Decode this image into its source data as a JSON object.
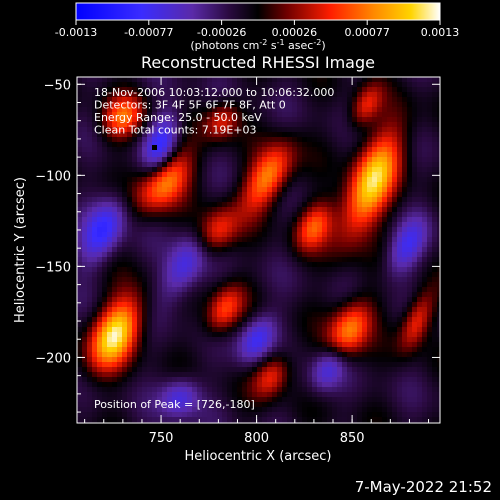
{
  "chart_data": {
    "type": "heatmap",
    "title": "Reconstructed RHESSI Image",
    "colorbar": {
      "ticks": [
        "-0.0013",
        "-0.00077",
        "-0.00026",
        "0.00026",
        "0.00077",
        "0.0013"
      ],
      "unit_parts": [
        "(photons cm",
        "-2",
        " s",
        "-1",
        " asec",
        "-2",
        ")"
      ],
      "range": [
        -0.0013,
        0.0013
      ]
    },
    "xlabel": "Heliocentric X (arcsec)",
    "ylabel": "Heliocentric Y (arcsec)",
    "xlim": [
      706,
      896
    ],
    "ylim": [
      -236,
      -46
    ],
    "xticks": [
      {
        "v": 750,
        "label": "750"
      },
      {
        "v": 800,
        "label": "800"
      },
      {
        "v": 850,
        "label": "850"
      }
    ],
    "yticks": [
      {
        "v": -50,
        "label": "−50"
      },
      {
        "v": -100,
        "label": "−100"
      },
      {
        "v": -150,
        "label": "−150"
      },
      {
        "v": -200,
        "label": "−200"
      }
    ],
    "annotations": [
      "18-Nov-2006 10:03:12.000 to 10:06:32.000",
      "Detectors: 3F 4F 5F 6F 7F 8F, Att 0",
      "Energy Range: 25.0 - 50.0 keV",
      "Clean    Total counts: 7.19E+03"
    ],
    "peak_label": "Position of Peak = [726,-180]",
    "blobs": [
      {
        "x": 726,
        "y": -187,
        "sx": 8,
        "sy": 15,
        "theta": 25,
        "a": 1.0
      },
      {
        "x": 751,
        "y": -103,
        "sx": 8,
        "sy": 13,
        "theta": 35,
        "a": 0.85
      },
      {
        "x": 779,
        "y": -131,
        "sx": 7,
        "sy": 10,
        "theta": 30,
        "a": 0.55
      },
      {
        "x": 806,
        "y": -101,
        "sx": 7,
        "sy": 14,
        "theta": 28,
        "a": 0.75
      },
      {
        "x": 860,
        "y": -105,
        "sx": 8,
        "sy": 22,
        "theta": 22,
        "a": 0.95
      },
      {
        "x": 830,
        "y": -128,
        "sx": 6,
        "sy": 10,
        "theta": 25,
        "a": 0.55
      },
      {
        "x": 848,
        "y": -186,
        "sx": 7,
        "sy": 13,
        "theta": 25,
        "a": 0.75
      },
      {
        "x": 783,
        "y": -174,
        "sx": 6,
        "sy": 10,
        "theta": 25,
        "a": 0.55
      },
      {
        "x": 730,
        "y": -68,
        "sx": 7,
        "sy": 9,
        "theta": 30,
        "a": 0.6
      },
      {
        "x": 808,
        "y": -210,
        "sx": 6,
        "sy": 9,
        "theta": 25,
        "a": 0.5
      },
      {
        "x": 884,
        "y": -180,
        "sx": 5,
        "sy": 12,
        "theta": 20,
        "a": 0.55
      },
      {
        "x": 857,
        "y": -62,
        "sx": 5,
        "sy": 9,
        "theta": 25,
        "a": 0.45
      },
      {
        "x": 782,
        "y": -70,
        "sx": 6,
        "sy": 8,
        "theta": 25,
        "a": 0.45
      },
      {
        "x": 750,
        "y": -85,
        "sx": 6,
        "sy": 14,
        "theta": 15,
        "a": -0.6
      },
      {
        "x": 720,
        "y": -130,
        "sx": 7,
        "sy": 14,
        "theta": 25,
        "a": -0.55
      },
      {
        "x": 762,
        "y": -150,
        "sx": 7,
        "sy": 14,
        "theta": 25,
        "a": -0.5
      },
      {
        "x": 800,
        "y": -190,
        "sx": 6,
        "sy": 10,
        "theta": 25,
        "a": -0.5
      },
      {
        "x": 838,
        "y": -205,
        "sx": 6,
        "sy": 10,
        "theta": 25,
        "a": -0.5
      },
      {
        "x": 878,
        "y": -140,
        "sx": 6,
        "sy": 12,
        "theta": 25,
        "a": -0.45
      },
      {
        "x": 760,
        "y": -222,
        "sx": 7,
        "sy": 8,
        "theta": 25,
        "a": -0.45
      }
    ]
  },
  "footer": {
    "date": "7-May-2022 21:52"
  }
}
